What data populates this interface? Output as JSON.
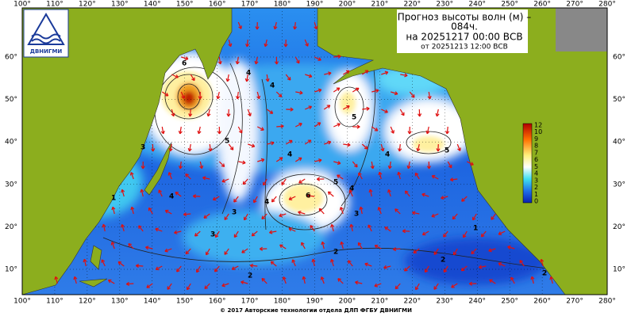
{
  "header": {
    "title_line1": "Прогноз высоты волн (м) –",
    "title_line2": "084ч.",
    "title_line3": "на 20251217 00:00 ВСВ",
    "title_line4": "от 20251213 12:00 ВСВ"
  },
  "logo": {
    "text": "ДВНИГМИ"
  },
  "map": {
    "lon_labels": [
      "100°",
      "110°",
      "120°",
      "130°",
      "140°",
      "150°",
      "160°",
      "170°",
      "180°",
      "190°",
      "200°",
      "210°",
      "220°",
      "230°",
      "240°",
      "250°",
      "260°",
      "270°",
      "280°"
    ],
    "lat_labels": [
      "60°",
      "50°",
      "40°",
      "30°",
      "20°",
      "10°"
    ],
    "contour_labels": [
      "6",
      "5",
      "4",
      "3",
      "5",
      "4",
      "6",
      "5",
      "4",
      "3",
      "4",
      "4",
      "3",
      "2",
      "1",
      "2",
      "2",
      "3",
      "4",
      "1",
      "2",
      "5",
      "4"
    ]
  },
  "colorbar": {
    "labels": [
      "12",
      "10",
      "9",
      "8",
      "7",
      "6",
      "5",
      "4",
      "3",
      "2",
      "1",
      "0"
    ]
  },
  "footer": {
    "text": "© 2017 Авторские технологии отдела ДЛП ФГБУ ДВНИГМИ"
  }
}
